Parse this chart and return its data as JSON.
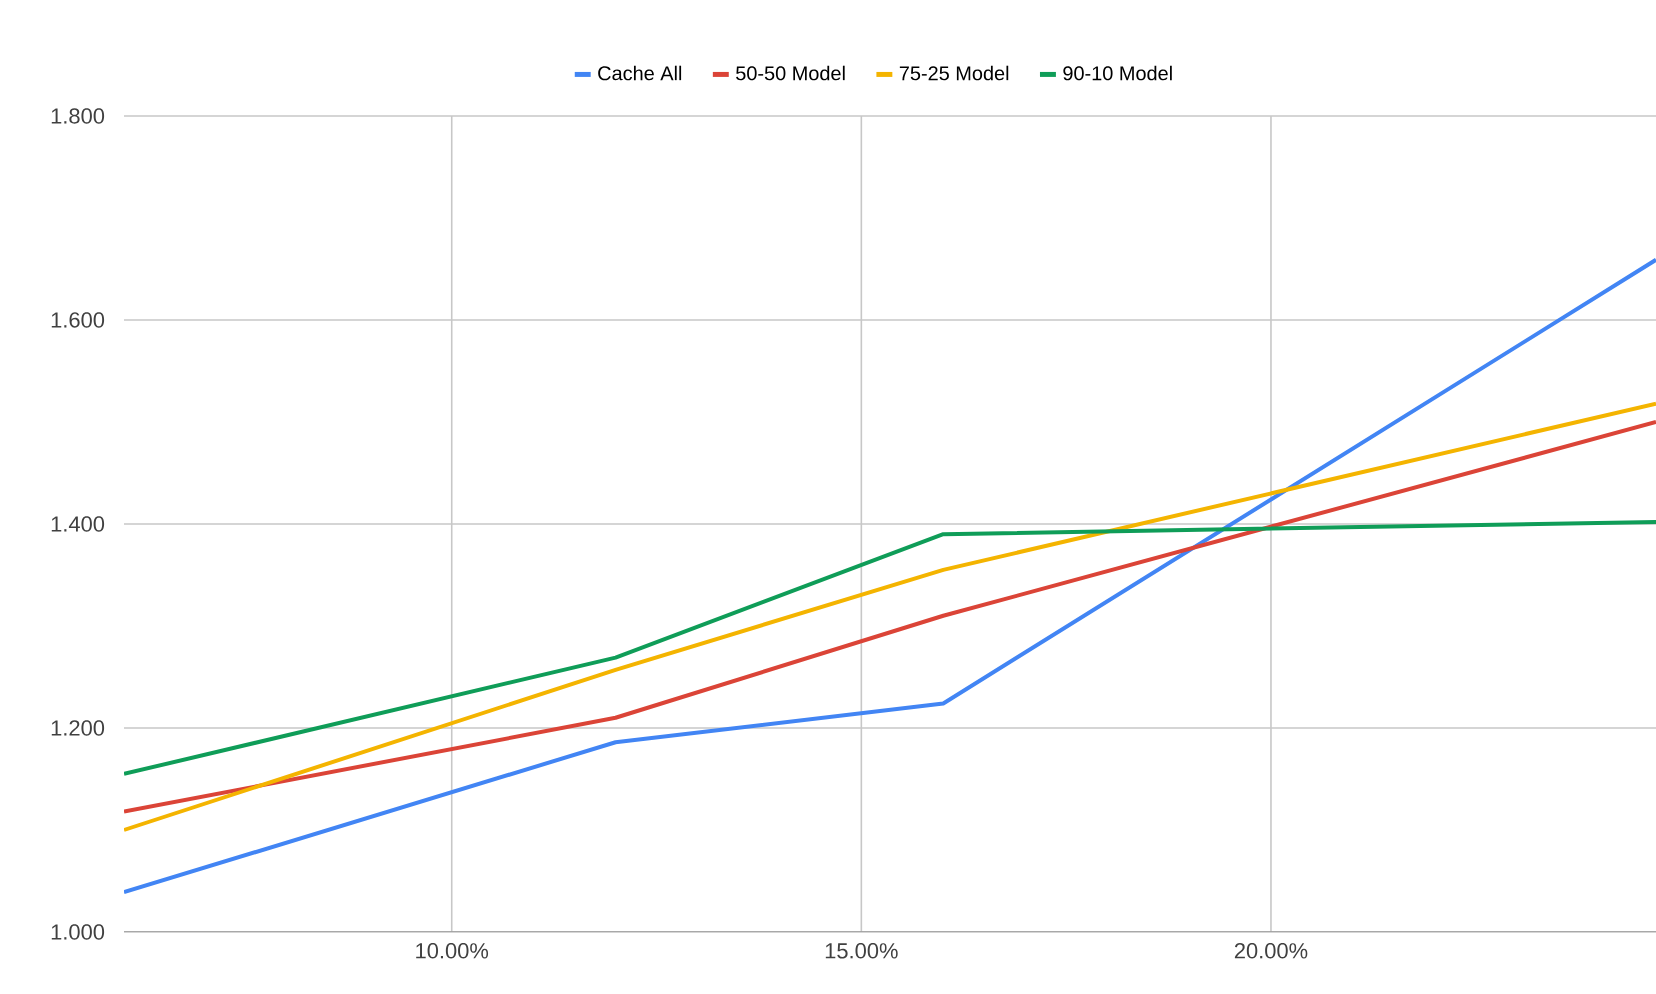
{
  "chart_data": {
    "type": "line",
    "legend": "top",
    "grid": true,
    "xlim": [
      6,
      24.7
    ],
    "ylim": [
      1.0,
      1.8
    ],
    "xticks": [
      {
        "value": 10,
        "label": "10.00%"
      },
      {
        "value": 15,
        "label": "15.00%"
      },
      {
        "value": 20,
        "label": "20.00%"
      }
    ],
    "yticks": [
      {
        "value": 1.0,
        "label": "1.000"
      },
      {
        "value": 1.2,
        "label": "1.200"
      },
      {
        "value": 1.4,
        "label": "1.400"
      },
      {
        "value": 1.6,
        "label": "1.600"
      },
      {
        "value": 1.8,
        "label": "1.800"
      }
    ],
    "x": [
      6,
      12,
      16,
      24.7
    ],
    "series": [
      {
        "name": "Cache All",
        "color": "#4285f4",
        "values": [
          1.039,
          1.186,
          1.224,
          1.659
        ]
      },
      {
        "name": "50-50 Model",
        "color": "#db4437",
        "values": [
          1.118,
          1.21,
          1.31,
          1.5
        ]
      },
      {
        "name": "75-25 Model",
        "color": "#f4b400",
        "values": [
          1.1,
          1.257,
          1.355,
          1.518
        ]
      },
      {
        "name": "90-10 Model",
        "color": "#0f9d58",
        "values": [
          1.155,
          1.269,
          1.39,
          1.402
        ]
      }
    ]
  }
}
